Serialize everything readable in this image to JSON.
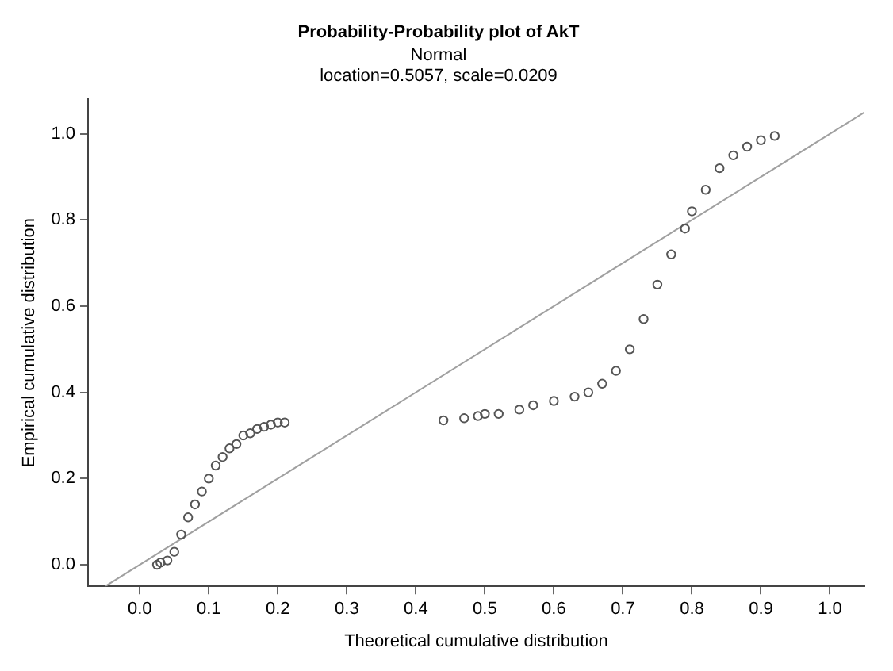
{
  "chart_data": {
    "type": "scatter",
    "title": "Probability-Probability plot of AkT",
    "subtitle": "Normal\nlocation=0.5057, scale=0.0209",
    "xlabel": "Theoretical cumulative distribution",
    "ylabel": "Empirical cumulative distribution",
    "xlim": [
      -0.075,
      1.05
    ],
    "ylim": [
      -0.05,
      1.08
    ],
    "xticks": [
      {
        "value": 0,
        "label": "0.0"
      },
      {
        "value": 0.1,
        "label": "0.1"
      },
      {
        "value": 0.2,
        "label": "0.2"
      },
      {
        "value": 0.3,
        "label": "0.3"
      },
      {
        "value": 0.4,
        "label": "0.4"
      },
      {
        "value": 0.5,
        "label": "0.5"
      },
      {
        "value": 0.6,
        "label": "0.6"
      },
      {
        "value": 0.7,
        "label": "0.7"
      },
      {
        "value": 0.8,
        "label": "0.8"
      },
      {
        "value": 0.9,
        "label": "0.9"
      },
      {
        "value": 1,
        "label": "1.0"
      }
    ],
    "yticks": [
      {
        "value": 0,
        "label": "0.0"
      },
      {
        "value": 0.2,
        "label": "0.2"
      },
      {
        "value": 0.4,
        "label": "0.4"
      },
      {
        "value": 0.6,
        "label": "0.6"
      },
      {
        "value": 0.8,
        "label": "0.8"
      },
      {
        "value": 1,
        "label": "1.0"
      }
    ],
    "grid": false,
    "legend": false,
    "series": [
      {
        "marker": "circle",
        "color": "#555555",
        "x": [
          0.025,
          0.03,
          0.04,
          0.05,
          0.06,
          0.07,
          0.08,
          0.09,
          0.1,
          0.11,
          0.12,
          0.13,
          0.14,
          0.15,
          0.16,
          0.17,
          0.18,
          0.19,
          0.2,
          0.21,
          0.44,
          0.47,
          0.49,
          0.5,
          0.52,
          0.55,
          0.57,
          0.6,
          0.63,
          0.65,
          0.67,
          0.69,
          0.71,
          0.73,
          0.75,
          0.77,
          0.79,
          0.8,
          0.82,
          0.84,
          0.86,
          0.88,
          0.9,
          0.92
        ],
        "values": [
          0,
          0.005,
          0.01,
          0.03,
          0.07,
          0.11,
          0.14,
          0.17,
          0.2,
          0.23,
          0.25,
          0.27,
          0.28,
          0.3,
          0.305,
          0.315,
          0.32,
          0.325,
          0.33,
          0.33,
          0.335,
          0.34,
          0.345,
          0.35,
          0.35,
          0.36,
          0.37,
          0.38,
          0.39,
          0.4,
          0.42,
          0.45,
          0.5,
          0.57,
          0.65,
          0.72,
          0.78,
          0.82,
          0.87,
          0.92,
          0.95,
          0.97,
          0.985,
          0.995
        ]
      },
      {
        "type": "line",
        "marker": "none",
        "color": "#a0a0a0",
        "line_style": "solid",
        "x": [
          -0.05,
          1.05
        ],
        "values": [
          -0.05,
          1.05
        ]
      }
    ]
  }
}
